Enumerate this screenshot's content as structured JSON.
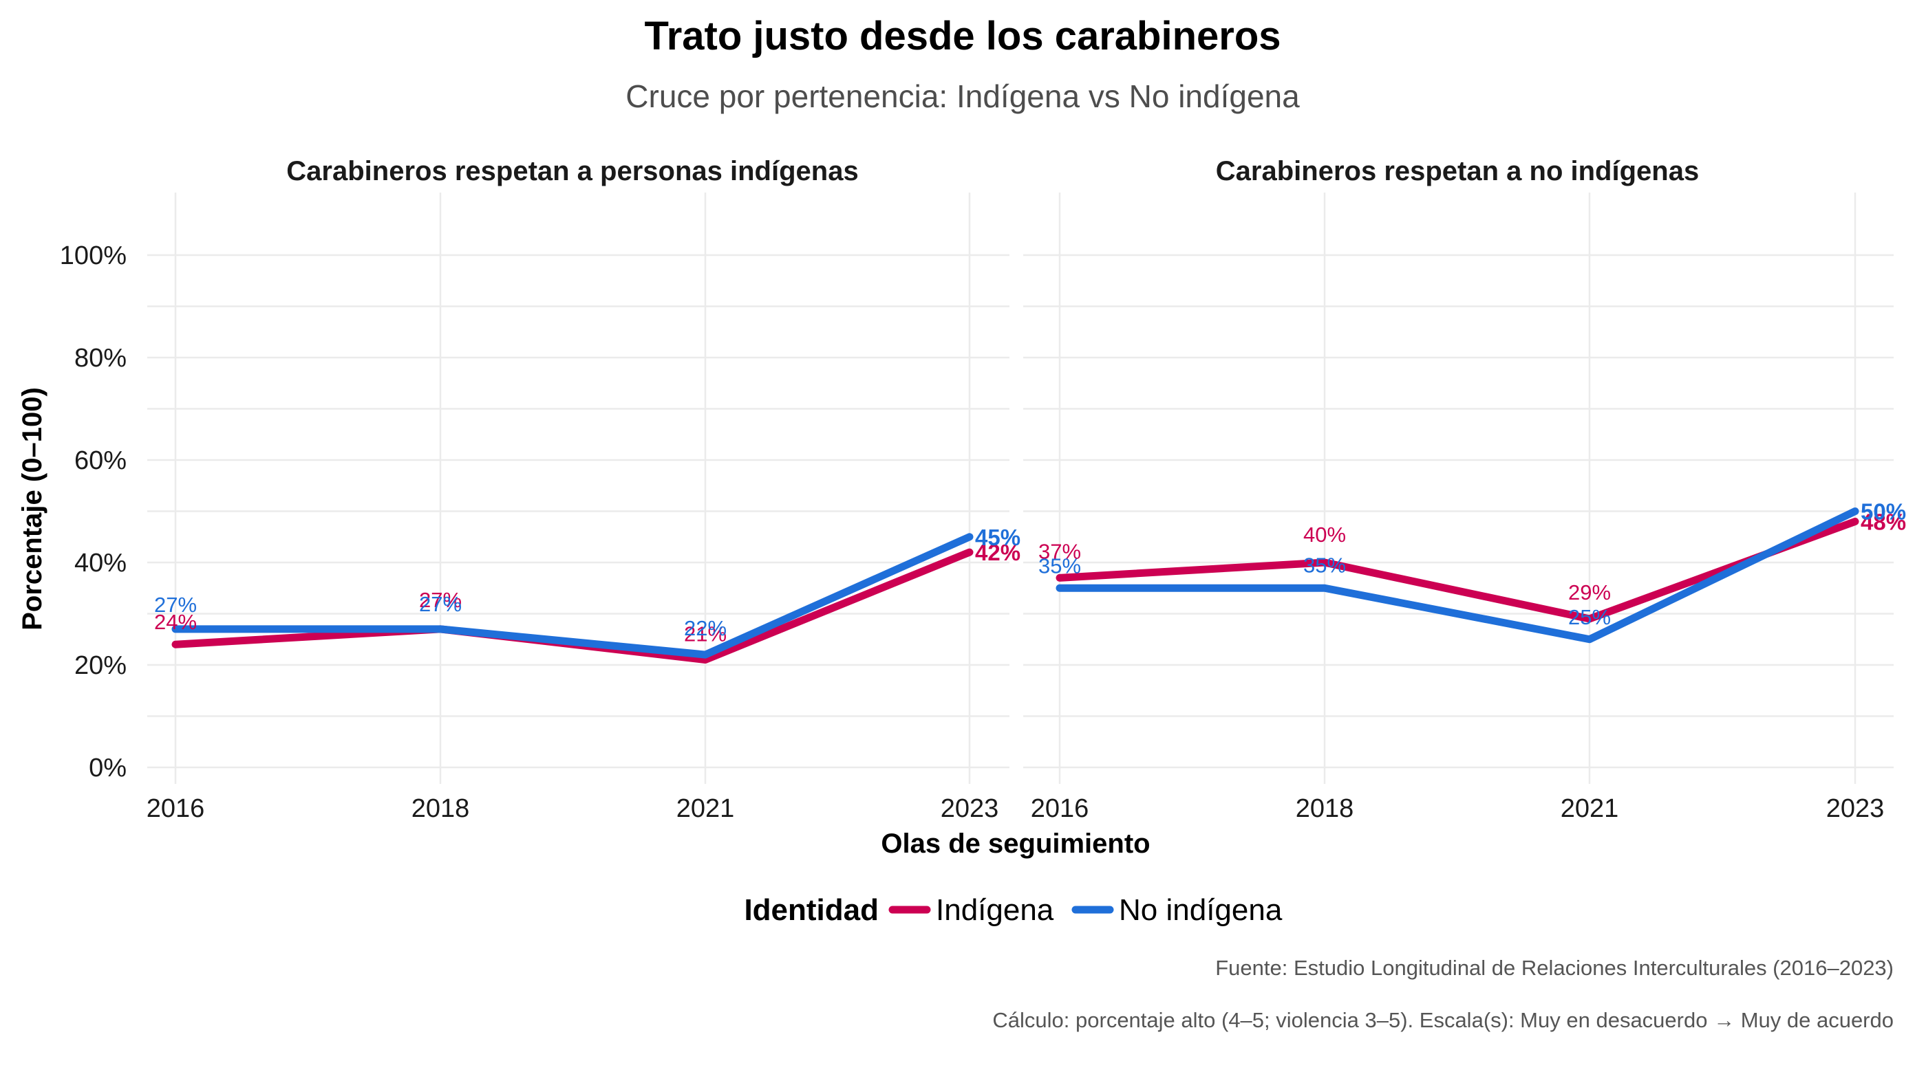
{
  "title": "Trato justo desde los carabineros",
  "subtitle": "Cruce por pertenencia: Indígena vs No indígena",
  "ylabel": "Porcentaje (0–100)",
  "xlabel": "Olas de seguimiento",
  "legend": {
    "title": "Identidad",
    "items": [
      {
        "label": "Indígena",
        "color": "#CC0052"
      },
      {
        "label": "No indígena",
        "color": "#1F6FD9"
      }
    ]
  },
  "caption": {
    "line1": "Fuente: Estudio Longitudinal de Relaciones Interculturales (2016–2023)",
    "line2": "Cálculo: porcentaje alto (4–5; violencia 3–5). Escala(s): Muy en desacuerdo → Muy de acuerdo"
  },
  "chart_data": [
    {
      "type": "line",
      "title": "Carabineros respetan a personas indígenas",
      "categories": [
        "2016",
        "2018",
        "2021",
        "2023"
      ],
      "y_ticks": [
        "0%",
        "20%",
        "40%",
        "60%",
        "80%",
        "100%"
      ],
      "ylim": [
        0,
        100
      ],
      "grid": true,
      "series": [
        {
          "name": "Indígena",
          "color": "#CC0052",
          "values": [
            24,
            27,
            21,
            42
          ],
          "labels": [
            "24%",
            "27%",
            "21%",
            "42%"
          ]
        },
        {
          "name": "No indígena",
          "color": "#1F6FD9",
          "values": [
            27,
            27,
            22,
            45
          ],
          "labels": [
            "27%",
            "27%",
            "22%",
            "45%"
          ]
        }
      ]
    },
    {
      "type": "line",
      "title": "Carabineros respetan a no indígenas",
      "categories": [
        "2016",
        "2018",
        "2021",
        "2023"
      ],
      "y_ticks": [
        "0%",
        "20%",
        "40%",
        "60%",
        "80%",
        "100%"
      ],
      "ylim": [
        0,
        100
      ],
      "grid": true,
      "series": [
        {
          "name": "Indígena",
          "color": "#CC0052",
          "values": [
            37,
            40,
            29,
            48
          ],
          "labels": [
            "37%",
            "40%",
            "29%",
            "48%"
          ]
        },
        {
          "name": "No indígena",
          "color": "#1F6FD9",
          "values": [
            35,
            35,
            25,
            50
          ],
          "labels": [
            "35%",
            "35%",
            "25%",
            "50%"
          ]
        }
      ]
    }
  ]
}
